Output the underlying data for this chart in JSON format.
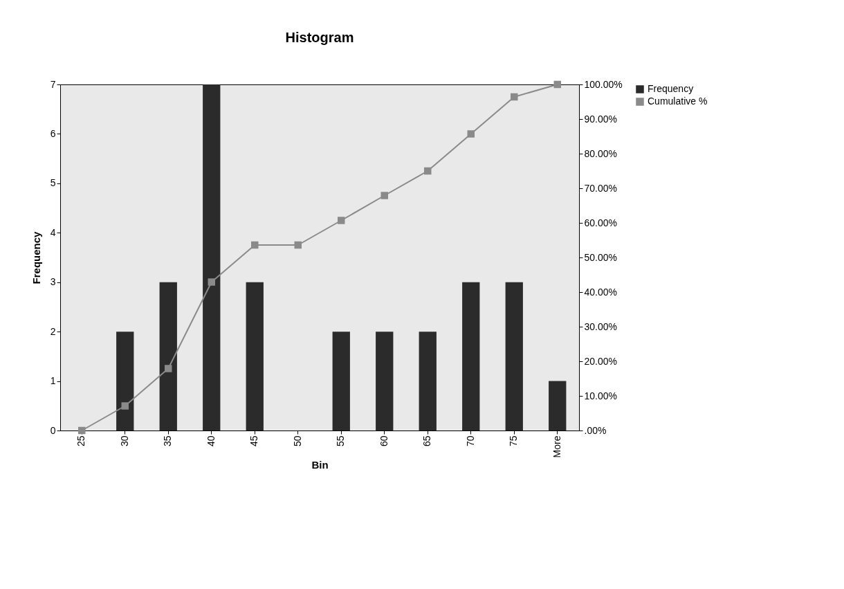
{
  "chart_data": {
    "type": "bar",
    "title": "Histogram",
    "xlabel": "Bin",
    "ylabel": "Frequency",
    "categories": [
      "25",
      "30",
      "35",
      "40",
      "45",
      "50",
      "55",
      "60",
      "65",
      "70",
      "75",
      "More"
    ],
    "series": [
      {
        "name": "Frequency",
        "color": "#2b2b2b",
        "values": [
          0,
          2,
          3,
          7,
          3,
          0,
          2,
          2,
          2,
          3,
          3,
          1
        ]
      },
      {
        "name": "Cumulative %",
        "type": "line",
        "axis": "y2",
        "color": "#8a8a8a",
        "values": [
          0,
          7.1,
          17.9,
          42.9,
          53.6,
          53.6,
          60.7,
          67.9,
          75,
          85.7,
          96.4,
          100
        ]
      }
    ],
    "ylim": [
      0,
      7
    ],
    "yticks": [
      0,
      1,
      2,
      3,
      4,
      5,
      6,
      7
    ],
    "y2lim": [
      0,
      100
    ],
    "y2ticks": [
      {
        "value": 0,
        "label": ".00%"
      },
      {
        "value": 10,
        "label": "10.00%"
      },
      {
        "value": 20,
        "label": "20.00%"
      },
      {
        "value": 30,
        "label": "30.00%"
      },
      {
        "value": 40,
        "label": "40.00%"
      },
      {
        "value": 50,
        "label": "50.00%"
      },
      {
        "value": 60,
        "label": "60.00%"
      },
      {
        "value": 70,
        "label": "70.00%"
      },
      {
        "value": 80,
        "label": "80.00%"
      },
      {
        "value": 90,
        "label": "90.00%"
      },
      {
        "value": 100,
        "label": "100.00%"
      }
    ],
    "marker": "square",
    "legend": "right",
    "grid": false
  }
}
